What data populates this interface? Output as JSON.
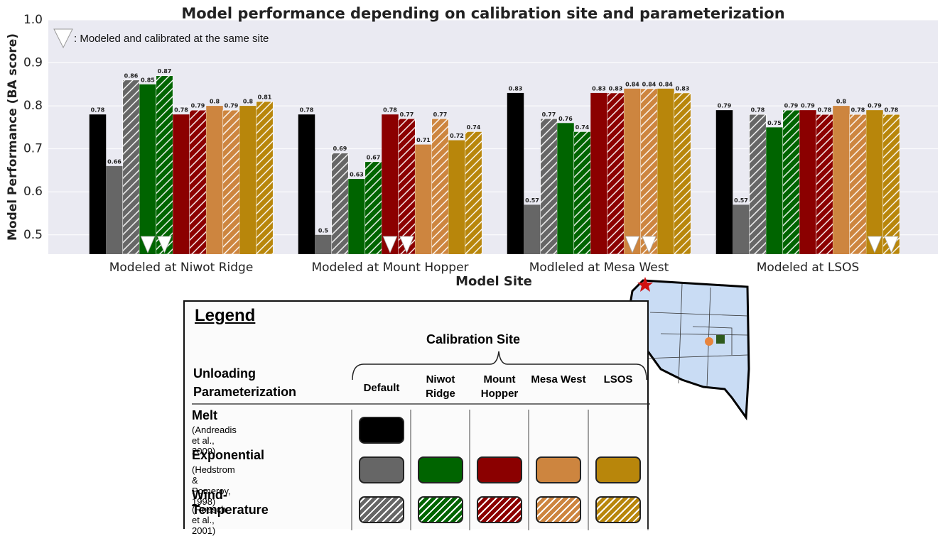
{
  "chart_data": {
    "type": "bar",
    "title": "Model performance depending on calibration site and parameterization",
    "x_label": "Model Site",
    "y_label": "Model Performance (BA score)",
    "categories": [
      "Modeled at Niwot Ridge",
      "Modeled at Mount Hopper",
      "Modleled at Mesa West",
      "Modeled at LSOS"
    ],
    "ylim": [
      0.455,
      1.0
    ],
    "yticks": [
      0.5,
      0.6,
      0.7,
      0.8,
      0.9,
      {
        "value": 1,
        "label": "1.0"
      }
    ],
    "grid": true,
    "triangle_note": ": Modeled and calibrated at the same site",
    "series": [
      {
        "color": "#000000",
        "hatch": false,
        "triangle_category": null,
        "values": [
          0.78,
          0.78,
          0.83,
          0.79
        ]
      },
      {
        "color": "#666666",
        "hatch": false,
        "triangle_category": null,
        "values": [
          0.66,
          0.5,
          0.57,
          0.57
        ]
      },
      {
        "color": "#666666",
        "hatch": true,
        "triangle_category": null,
        "values": [
          0.86,
          0.69,
          0.77,
          0.78
        ]
      },
      {
        "color": "#006400",
        "hatch": false,
        "triangle_category": 0,
        "values": [
          0.85,
          0.63,
          0.76,
          0.75
        ]
      },
      {
        "color": "#006400",
        "hatch": true,
        "triangle_category": 0,
        "values": [
          0.87,
          0.67,
          0.74,
          0.79
        ]
      },
      {
        "color": "#8b0000",
        "hatch": false,
        "triangle_category": 1,
        "values": [
          0.78,
          0.78,
          0.83,
          0.79
        ]
      },
      {
        "color": "#8b0000",
        "hatch": true,
        "triangle_category": 1,
        "values": [
          0.79,
          0.77,
          0.83,
          0.78
        ]
      },
      {
        "color": "#cd853f",
        "hatch": false,
        "triangle_category": 2,
        "values": [
          0.8,
          0.71,
          0.84,
          0.8
        ]
      },
      {
        "color": "#cd853f",
        "hatch": true,
        "triangle_category": 2,
        "values": [
          0.79,
          0.77,
          0.84,
          0.78
        ]
      },
      {
        "color": "#b8860b",
        "hatch": false,
        "triangle_category": 3,
        "values": [
          0.8,
          0.72,
          0.84,
          0.79
        ]
      },
      {
        "color": "#b8860b",
        "hatch": true,
        "triangle_category": 3,
        "values": [
          0.81,
          0.74,
          0.83,
          0.78
        ]
      }
    ]
  },
  "legend": {
    "title": "Legend",
    "column_header": "Calibration Site",
    "row_header": "Unloading Parameterization",
    "columns": [
      "Default",
      "Niwot Ridge",
      "Mount Hopper",
      "Mesa West",
      "LSOS"
    ],
    "rows": [
      {
        "name": "Melt",
        "reference": "(Andreadis et al., 2009)"
      },
      {
        "name": "Exponential",
        "reference": "(Hedstrom & Pomeroy, 1998)"
      },
      {
        "name": "Wind-Temperature",
        "reference": "(Roesch et al., 2001)"
      }
    ]
  }
}
